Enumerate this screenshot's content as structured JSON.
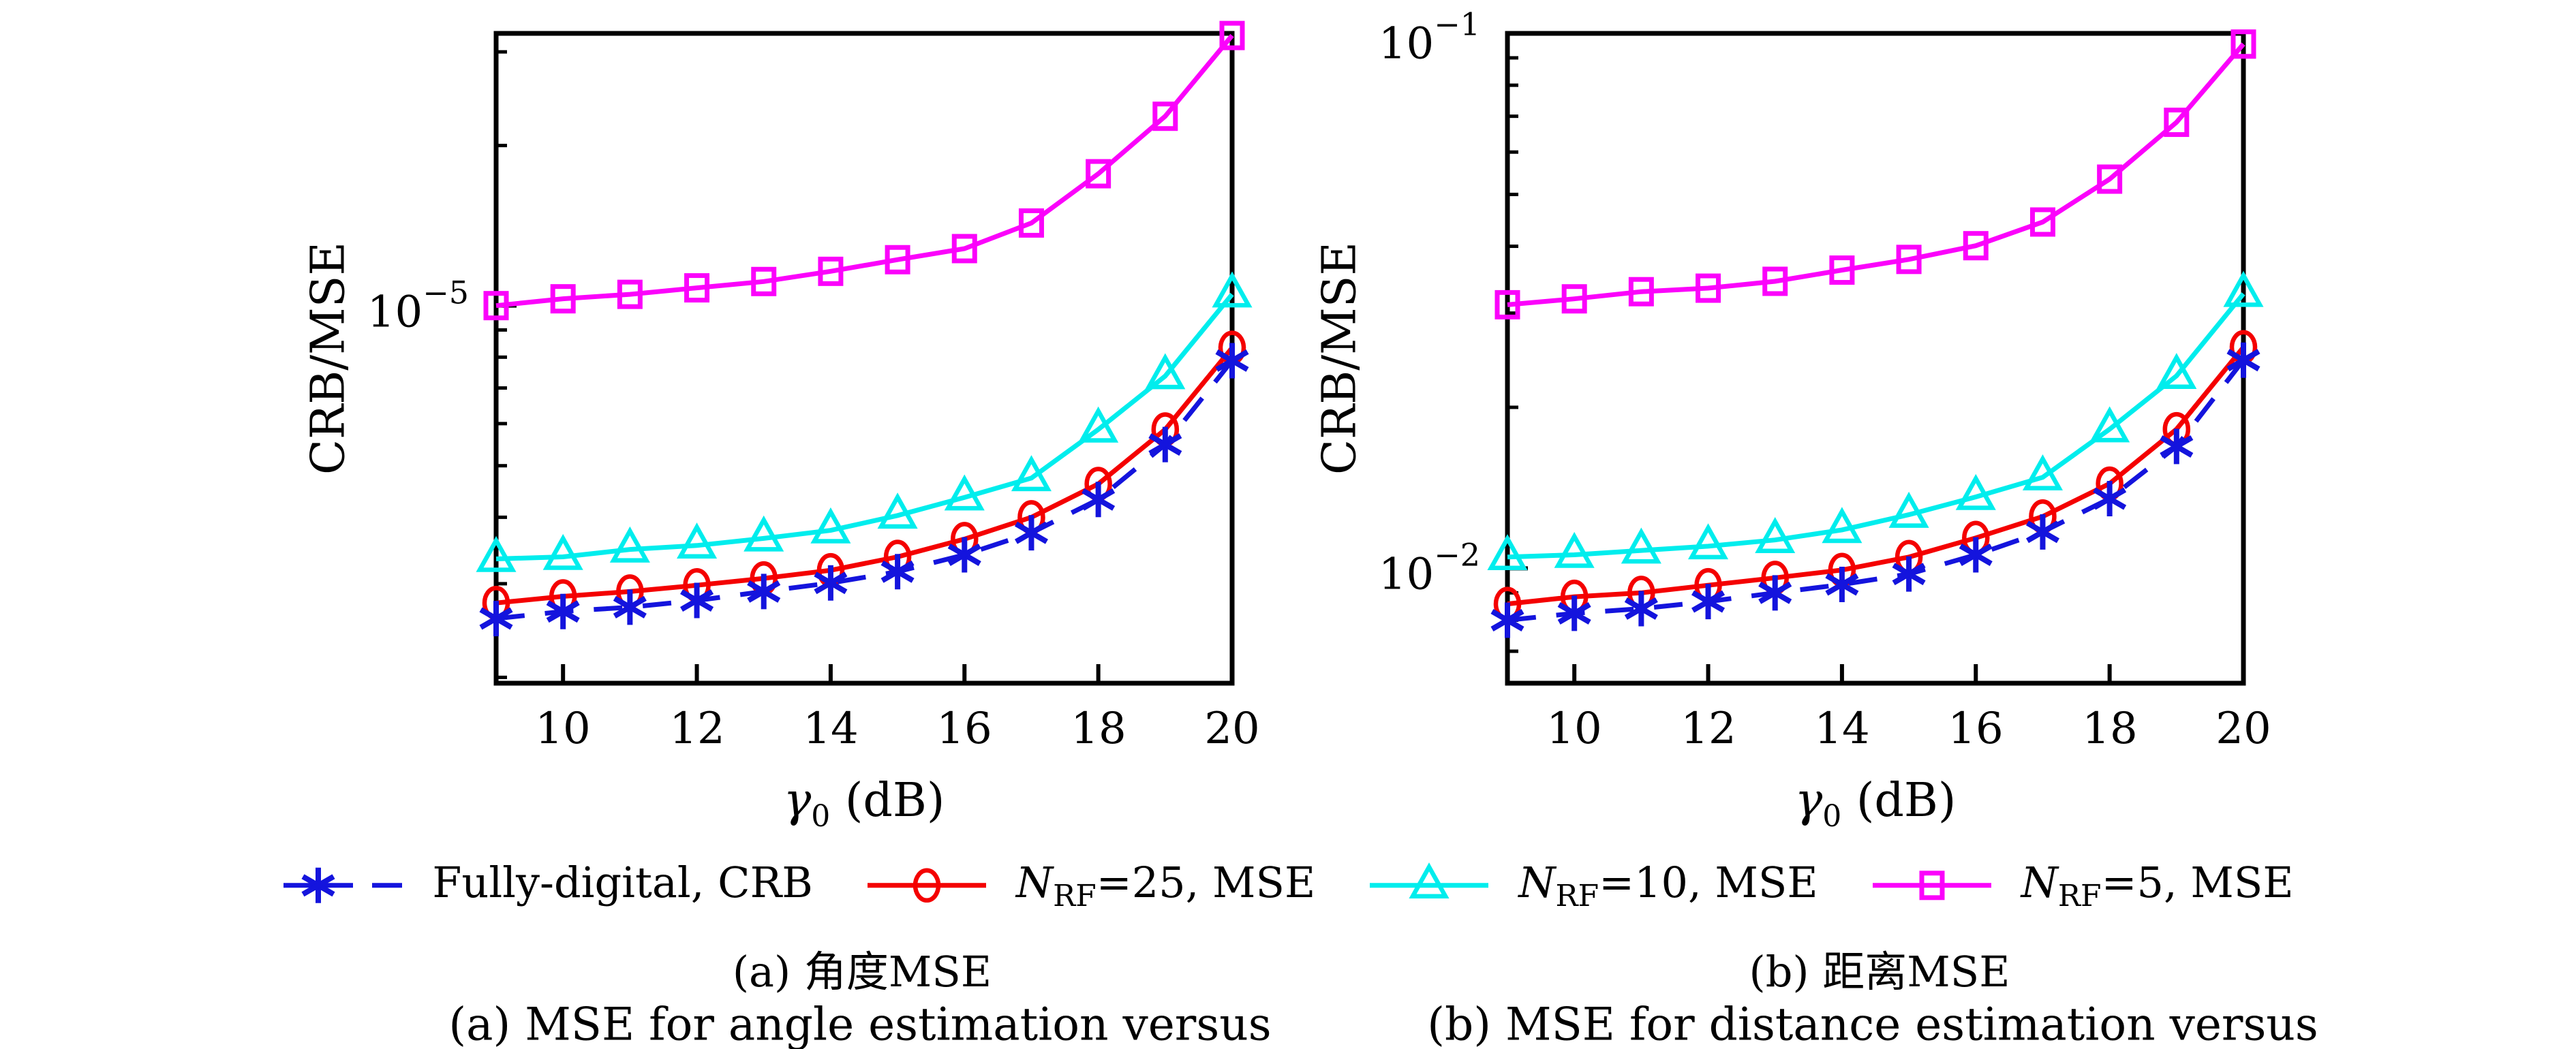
{
  "figure": {
    "background": "#ffffff"
  },
  "axes": {
    "ylabel": "CRB/MSE",
    "xlabel": {
      "sym": "γ",
      "sub": "0",
      "rest": " (dB)"
    }
  },
  "legend": {
    "items": [
      {
        "sym": "",
        "sub": "",
        "rest": "Fully-digital, CRB",
        "color": "#1414dd",
        "marker": "asterisk",
        "line": "dashdot"
      },
      {
        "sym": "N",
        "sub": "RF",
        "rest": "=25, MSE",
        "color": "#f40000",
        "marker": "circle",
        "line": "solid"
      },
      {
        "sym": "N",
        "sub": "RF",
        "rest": "=10, MSE",
        "color": "#00eded",
        "marker": "triangle",
        "line": "solid"
      },
      {
        "sym": "N",
        "sub": "RF",
        "rest": "=5, MSE",
        "color": "#fb02fb",
        "marker": "square",
        "line": "solid"
      }
    ]
  },
  "captions": {
    "a_zh": "(a) 角度MSE",
    "a_en": "(a) MSE for angle estimation versus",
    "b_zh": "(b) 距离MSE",
    "b_en": "(b) MSE for distance estimation versus"
  },
  "chart_data": [
    {
      "type": "line",
      "panel": "a",
      "title": "(a) 角度MSE — MSE for angle estimation",
      "xlabel": "γ0 (dB)",
      "ylabel": "CRB/MSE",
      "x": [
        9,
        10,
        11,
        12,
        13,
        14,
        15,
        16,
        17,
        18,
        19,
        20
      ],
      "xlim": [
        9,
        20
      ],
      "ylim": [
        1.95e-06,
        3.25e-05
      ],
      "xtick_values": [
        10,
        12,
        14,
        16,
        18,
        20
      ],
      "xtick_labels": [
        "10",
        "12",
        "14",
        "16",
        "18",
        "20"
      ],
      "yticks": [
        {
          "value": 1e-05,
          "base": "10",
          "exp": "−5"
        }
      ],
      "grid": false,
      "legend_position": "below",
      "yscale": "log",
      "series": [
        {
          "name": "Fully-digital, CRB",
          "color": "#1414dd",
          "marker": "asterisk",
          "line": "dashdot",
          "values": [
            2.58e-06,
            2.66e-06,
            2.71e-06,
            2.79e-06,
            2.9e-06,
            3.01e-06,
            3.16e-06,
            3.4e-06,
            3.74e-06,
            4.32e-06,
            5.48e-06,
            7.88e-06
          ]
        },
        {
          "name": "NRF=25, MSE",
          "color": "#f40000",
          "marker": "circle",
          "line": "solid",
          "values": [
            2.76e-06,
            2.84e-06,
            2.9e-06,
            2.98e-06,
            3.07e-06,
            3.18e-06,
            3.37e-06,
            3.64e-06,
            4e-06,
            4.62e-06,
            5.85e-06,
            8.33e-06
          ]
        },
        {
          "name": "NRF=10, MSE",
          "color": "#00eded",
          "marker": "triangle",
          "line": "solid",
          "values": [
            3.34e-06,
            3.37e-06,
            3.48e-06,
            3.54e-06,
            3.65e-06,
            3.78e-06,
            4.03e-06,
            4.36e-06,
            4.74e-06,
            5.85e-06,
            7.37e-06,
            1.05e-05
          ]
        },
        {
          "name": "NRF=5, MSE",
          "color": "#fb02fb",
          "marker": "square",
          "line": "solid",
          "values": [
            1e-05,
            1.03e-05,
            1.05e-05,
            1.08e-05,
            1.11e-05,
            1.16e-05,
            1.22e-05,
            1.28e-05,
            1.43e-05,
            1.77e-05,
            2.27e-05,
            3.22e-05
          ]
        }
      ]
    },
    {
      "type": "line",
      "panel": "b",
      "title": "(b) 距离MSE — MSE for distance estimation",
      "xlabel": "γ0 (dB)",
      "ylabel": "CRB/MSE",
      "x": [
        9,
        10,
        11,
        12,
        13,
        14,
        15,
        16,
        17,
        18,
        19,
        20
      ],
      "xlim": [
        9,
        20
      ],
      "ylim": [
        0.0061,
        0.1
      ],
      "xtick_values": [
        10,
        12,
        14,
        16,
        18,
        20
      ],
      "xtick_labels": [
        "10",
        "12",
        "14",
        "16",
        "18",
        "20"
      ],
      "yticks": [
        {
          "value": 0.1,
          "base": "10",
          "exp": "−1"
        },
        {
          "value": 0.01,
          "base": "10",
          "exp": "−2"
        }
      ],
      "grid": false,
      "legend_position": "below",
      "yscale": "log",
      "series": [
        {
          "name": "Fully-digital, CRB",
          "color": "#1414dd",
          "marker": "asterisk",
          "line": "dashdot",
          "values": [
            0.008,
            0.00824,
            0.00841,
            0.00867,
            0.009,
            0.00933,
            0.00976,
            0.0106,
            0.0117,
            0.0135,
            0.0169,
            0.0245
          ]
        },
        {
          "name": "NRF=25, MSE",
          "color": "#f40000",
          "marker": "circle",
          "line": "solid",
          "values": [
            0.00858,
            0.00885,
            0.009,
            0.0093,
            0.0096,
            0.00993,
            0.0105,
            0.0114,
            0.0125,
            0.0144,
            0.0182,
            0.0259
          ]
        },
        {
          "name": "NRF=10, MSE",
          "color": "#00eded",
          "marker": "triangle",
          "line": "solid",
          "values": [
            0.0105,
            0.0106,
            0.0108,
            0.011,
            0.0113,
            0.0118,
            0.0126,
            0.0136,
            0.0148,
            0.0182,
            0.0229,
            0.0326
          ]
        },
        {
          "name": "NRF=5, MSE",
          "color": "#fb02fb",
          "marker": "square",
          "line": "solid",
          "values": [
            0.0311,
            0.0319,
            0.0329,
            0.0334,
            0.0344,
            0.0361,
            0.0378,
            0.0401,
            0.0444,
            0.0534,
            0.0682,
            0.0955
          ]
        }
      ]
    }
  ]
}
